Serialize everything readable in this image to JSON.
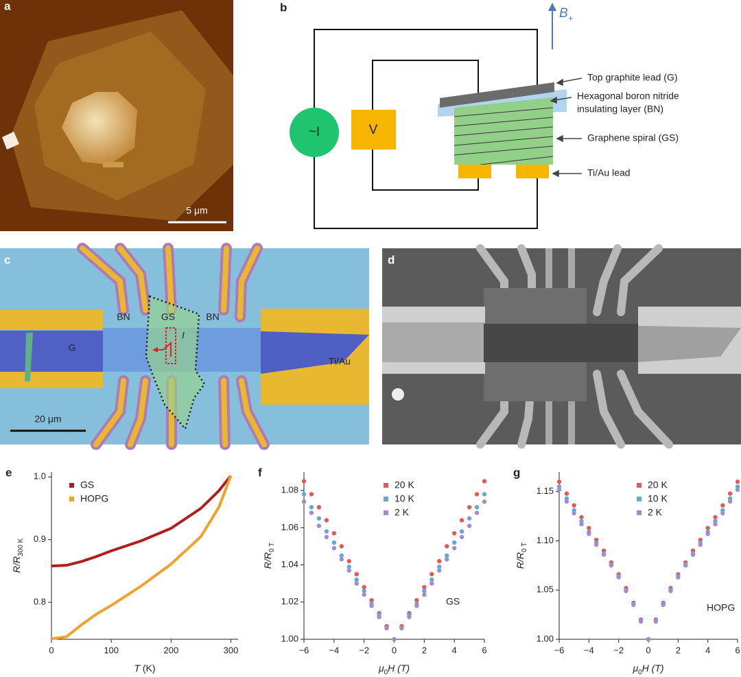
{
  "panels": {
    "a": {
      "label": "a",
      "scale_bar": "5 μm"
    },
    "b": {
      "label": "b",
      "field": "B",
      "field_sub": "+",
      "source": "~I",
      "meter": "V",
      "labels": [
        "Top graphite lead (G)",
        "Hexagonal boron nitride",
        "insulating layer (BN)",
        "Graphene spiral (GS)",
        "Ti/Au lead"
      ]
    },
    "c": {
      "label": "c",
      "labels": [
        "BN",
        "GS",
        "BN",
        "G",
        "I",
        "Ti/Au"
      ],
      "scale_bar": "20 μm"
    },
    "d": {
      "label": "d"
    }
  },
  "chart_data": [
    {
      "type": "line",
      "label": "e",
      "xlabel": "T",
      "xlabel_after": " (K)",
      "ylabel": "R/R",
      "ylabel_sub": "300 K",
      "xlim": [
        0,
        312
      ],
      "ylim": [
        0.741,
        1.008
      ],
      "xticks": [
        0,
        100,
        200,
        300
      ],
      "yticks": [
        0.8,
        0.9,
        {
          "value": 1,
          "label": "1.0"
        }
      ],
      "x": [
        0,
        25,
        50,
        75,
        100,
        150,
        200,
        250,
        280,
        300
      ],
      "series": [
        {
          "name": "GS",
          "color": "#b01e1e",
          "values": [
            0.858,
            0.859,
            0.865,
            0.873,
            0.882,
            0.898,
            0.918,
            0.95,
            0.978,
            1.002
          ]
        },
        {
          "name": "HOPG",
          "color": "#f0a22e",
          "values": [
            0.742,
            0.745,
            0.764,
            0.781,
            0.795,
            0.826,
            0.861,
            0.905,
            0.952,
            1.002
          ]
        }
      ]
    },
    {
      "type": "scatter",
      "label": "f",
      "xlabel": "μ",
      "xlabel_sub": "0",
      "xlabel_after": "H (T)",
      "ylabel": "R/R",
      "ylabel_sub": "0 T",
      "annotation": "GS",
      "xlim": [
        -6,
        6
      ],
      "ylim": [
        1.0,
        1.09
      ],
      "xticks": [
        {
          "value": -6,
          "label": "−6"
        },
        {
          "value": -4,
          "label": "−4"
        },
        {
          "value": -2,
          "label": "−2"
        },
        0,
        2,
        4,
        6
      ],
      "yticks": [
        {
          "value": 1,
          "label": "1.00"
        },
        {
          "value": 1.02,
          "label": "1.02"
        },
        {
          "value": 1.04,
          "label": "1.04"
        },
        {
          "value": 1.06,
          "label": "1.06"
        },
        {
          "value": 1.08,
          "label": "1.08"
        }
      ],
      "x": [
        -6,
        -5.5,
        -5,
        -4.5,
        -4,
        -3.5,
        -3,
        -2.5,
        -2,
        -1.5,
        -1,
        -0.5,
        0,
        0.5,
        1,
        1.5,
        2,
        2.5,
        3,
        3.5,
        4,
        4.5,
        5,
        5.5,
        6
      ],
      "series": [
        {
          "name": "20 K",
          "color": "#e05a5a",
          "values": [
            1.085,
            1.078,
            1.071,
            1.064,
            1.057,
            1.05,
            1.042,
            1.035,
            1.028,
            1.021,
            1.014,
            1.007,
            1.0,
            1.007,
            1.014,
            1.021,
            1.028,
            1.035,
            1.042,
            1.05,
            1.057,
            1.064,
            1.071,
            1.078,
            1.085
          ]
        },
        {
          "name": "10 K",
          "color": "#62a8d8",
          "values": [
            1.078,
            1.071,
            1.065,
            1.058,
            1.052,
            1.045,
            1.039,
            1.032,
            1.026,
            1.019,
            1.013,
            1.006,
            1.0,
            1.006,
            1.013,
            1.019,
            1.026,
            1.032,
            1.039,
            1.045,
            1.052,
            1.058,
            1.065,
            1.071,
            1.078
          ]
        },
        {
          "name": "2 K",
          "color": "#a48ccc",
          "values": [
            1.074,
            1.068,
            1.061,
            1.055,
            1.049,
            1.043,
            1.037,
            1.03,
            1.024,
            1.018,
            1.012,
            1.006,
            1.0,
            1.006,
            1.012,
            1.018,
            1.024,
            1.03,
            1.037,
            1.043,
            1.049,
            1.055,
            1.061,
            1.068,
            1.074
          ]
        }
      ]
    },
    {
      "type": "scatter",
      "label": "g",
      "xlabel": "μ",
      "xlabel_sub": "0",
      "xlabel_after": "H (T)",
      "ylabel": "R/R",
      "ylabel_sub": "0 T",
      "annotation": "HOPG",
      "xlim": [
        -6,
        6
      ],
      "ylim": [
        1.0,
        1.17
      ],
      "xticks": [
        {
          "value": -6,
          "label": "−6"
        },
        {
          "value": -4,
          "label": "−4"
        },
        {
          "value": -2,
          "label": "−2"
        },
        0,
        2,
        4,
        6
      ],
      "yticks": [
        {
          "value": 1,
          "label": "1.00"
        },
        {
          "value": 1.05,
          "label": "1.05"
        },
        {
          "value": 1.1,
          "label": "1.10"
        },
        {
          "value": 1.15,
          "label": "1.15"
        }
      ],
      "x": [
        -6,
        -5.5,
        -5,
        -4.5,
        -4,
        -3.5,
        -3,
        -2.5,
        -2,
        -1.5,
        -1,
        -0.5,
        0,
        0.5,
        1,
        1.5,
        2,
        2.5,
        3,
        3.5,
        4,
        4.5,
        5,
        5.5,
        6
      ],
      "series": [
        {
          "name": "20 K",
          "color": "#e05a5a",
          "values": [
            1.16,
            1.148,
            1.136,
            1.124,
            1.113,
            1.101,
            1.09,
            1.078,
            1.066,
            1.052,
            1.037,
            1.02,
            1.0,
            1.02,
            1.037,
            1.052,
            1.066,
            1.078,
            1.09,
            1.101,
            1.113,
            1.124,
            1.136,
            1.148,
            1.16
          ]
        },
        {
          "name": "10 K",
          "color": "#62a8d8",
          "values": [
            1.155,
            1.143,
            1.131,
            1.12,
            1.109,
            1.098,
            1.087,
            1.076,
            1.064,
            1.05,
            1.036,
            1.019,
            1.0,
            1.019,
            1.036,
            1.05,
            1.064,
            1.076,
            1.087,
            1.098,
            1.109,
            1.12,
            1.131,
            1.143,
            1.155
          ]
        },
        {
          "name": "2 K",
          "color": "#a48ccc",
          "values": [
            1.152,
            1.14,
            1.128,
            1.117,
            1.107,
            1.096,
            1.086,
            1.075,
            1.063,
            1.049,
            1.035,
            1.018,
            1.0,
            1.018,
            1.035,
            1.049,
            1.063,
            1.075,
            1.086,
            1.096,
            1.107,
            1.117,
            1.128,
            1.14,
            1.152
          ]
        }
      ]
    }
  ]
}
